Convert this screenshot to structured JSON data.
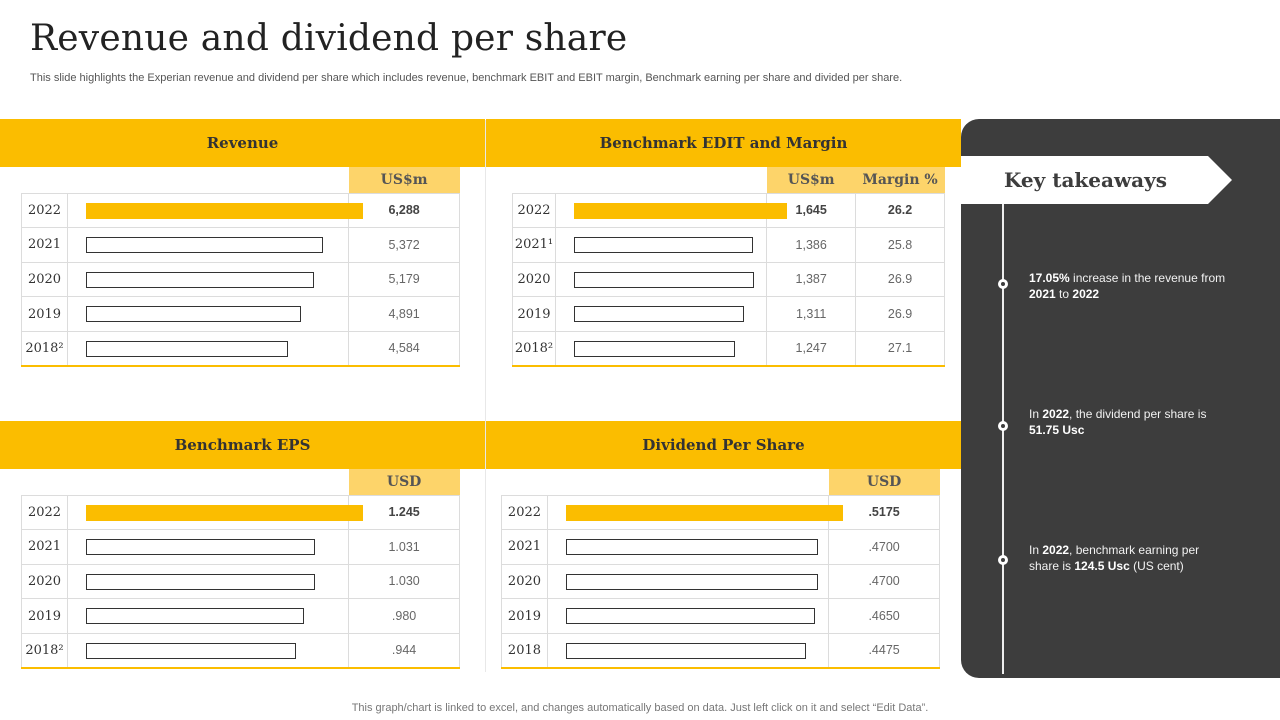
{
  "page": {
    "title": "Revenue and dividend per share",
    "subtitle": "This slide highlights the Experian revenue and dividend per share which includes revenue, benchmark EBIT and EBIT margin, Benchmark earning per share and divided per share.",
    "footer": "This graph/chart is linked to excel, and changes automatically based on data. Just left click on it and select “Edit Data”."
  },
  "colors": {
    "accent": "#FBBD00",
    "header_cell": "#FDD46A",
    "dark_panel": "#3D3D3D"
  },
  "chart_data": [
    {
      "type": "bar",
      "title": "Revenue",
      "value_header": "US$m",
      "categories": [
        "2022",
        "2021",
        "2020",
        "2019",
        "2018²"
      ],
      "values": [
        6288,
        5372,
        5179,
        4891,
        4584
      ],
      "labels": [
        "6,288",
        "5,372",
        "5,179",
        "4,891",
        "4,584"
      ],
      "highlight_index": 0
    },
    {
      "type": "bar",
      "title": "Benchmark EDIT and Margin",
      "value_header": "US$m",
      "extra_header": "Margin %",
      "categories": [
        "2022",
        "2021¹",
        "2020",
        "2019",
        "2018²"
      ],
      "values": [
        1645,
        1386,
        1387,
        1311,
        1247
      ],
      "labels": [
        "1,645",
        "1,386",
        "1,387",
        "1,311",
        "1,247"
      ],
      "extra_values": [
        26.2,
        25.8,
        26.9,
        26.9,
        27.1
      ],
      "extra_labels": [
        "26.2",
        "25.8",
        "26.9",
        "26.9",
        "27.1"
      ],
      "highlight_index": 0
    },
    {
      "type": "bar",
      "title": "Benchmark EPS",
      "value_header": "USD",
      "categories": [
        "2022",
        "2021",
        "2020",
        "2019",
        "2018²"
      ],
      "values": [
        1.245,
        1.031,
        1.03,
        0.98,
        0.944
      ],
      "labels": [
        "1.245",
        "1.031",
        "1.030",
        ".980",
        ".944"
      ],
      "highlight_index": 0
    },
    {
      "type": "bar",
      "title": "Dividend Per Share",
      "value_header": "USD",
      "categories": [
        "2022",
        "2021",
        "2020",
        "2019",
        "2018"
      ],
      "values": [
        0.5175,
        0.47,
        0.47,
        0.465,
        0.4475
      ],
      "labels": [
        ".5175",
        ".4700",
        ".4700",
        ".4650",
        ".4475"
      ],
      "highlight_index": 0
    }
  ],
  "takeaways": {
    "title": "Key takeaways",
    "items": [
      {
        "parts": [
          {
            "b": true,
            "t": "17.05%"
          },
          {
            "b": false,
            "t": " increase in the revenue  from "
          },
          {
            "b": true,
            "t": "2021"
          },
          {
            "b": false,
            "t": " to "
          },
          {
            "b": true,
            "t": "2022"
          }
        ]
      },
      {
        "parts": [
          {
            "b": false,
            "t": "In "
          },
          {
            "b": true,
            "t": "2022"
          },
          {
            "b": false,
            "t": ", the dividend  per share is "
          },
          {
            "b": true,
            "t": "51.75 Usc"
          }
        ]
      },
      {
        "parts": [
          {
            "b": false,
            "t": "In "
          },
          {
            "b": true,
            "t": "2022"
          },
          {
            "b": false,
            "t": ", benchmark earning per share is "
          },
          {
            "b": true,
            "t": "124.5 Usc"
          },
          {
            "b": false,
            "t": " (US cent)"
          }
        ]
      }
    ]
  }
}
